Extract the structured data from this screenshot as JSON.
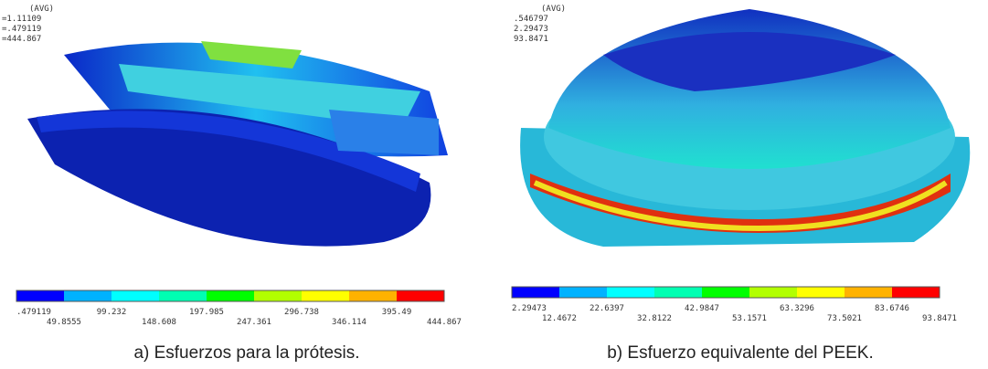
{
  "panels": [
    {
      "header": [
        "(AVG)",
        "=1.11109",
        "=.479119",
        "=444.867"
      ],
      "scale_labels": [
        ".479119",
        "49.8555",
        "99.232",
        "148.608",
        "197.985",
        "247.361",
        "296.738",
        "346.114",
        "395.49",
        "444.867"
      ],
      "caption": "a) Esfuerzos para la prótesis."
    },
    {
      "header": [
        "(AVG)",
        ".546797",
        "2.29473",
        "93.8471"
      ],
      "scale_labels": [
        "2.29473",
        "12.4672",
        "22.6397",
        "32.8122",
        "42.9847",
        "53.1571",
        "63.3296",
        "73.5021",
        "83.6746",
        "93.8471"
      ],
      "caption": "b) Esfuerzo equivalente del PEEK."
    }
  ]
}
